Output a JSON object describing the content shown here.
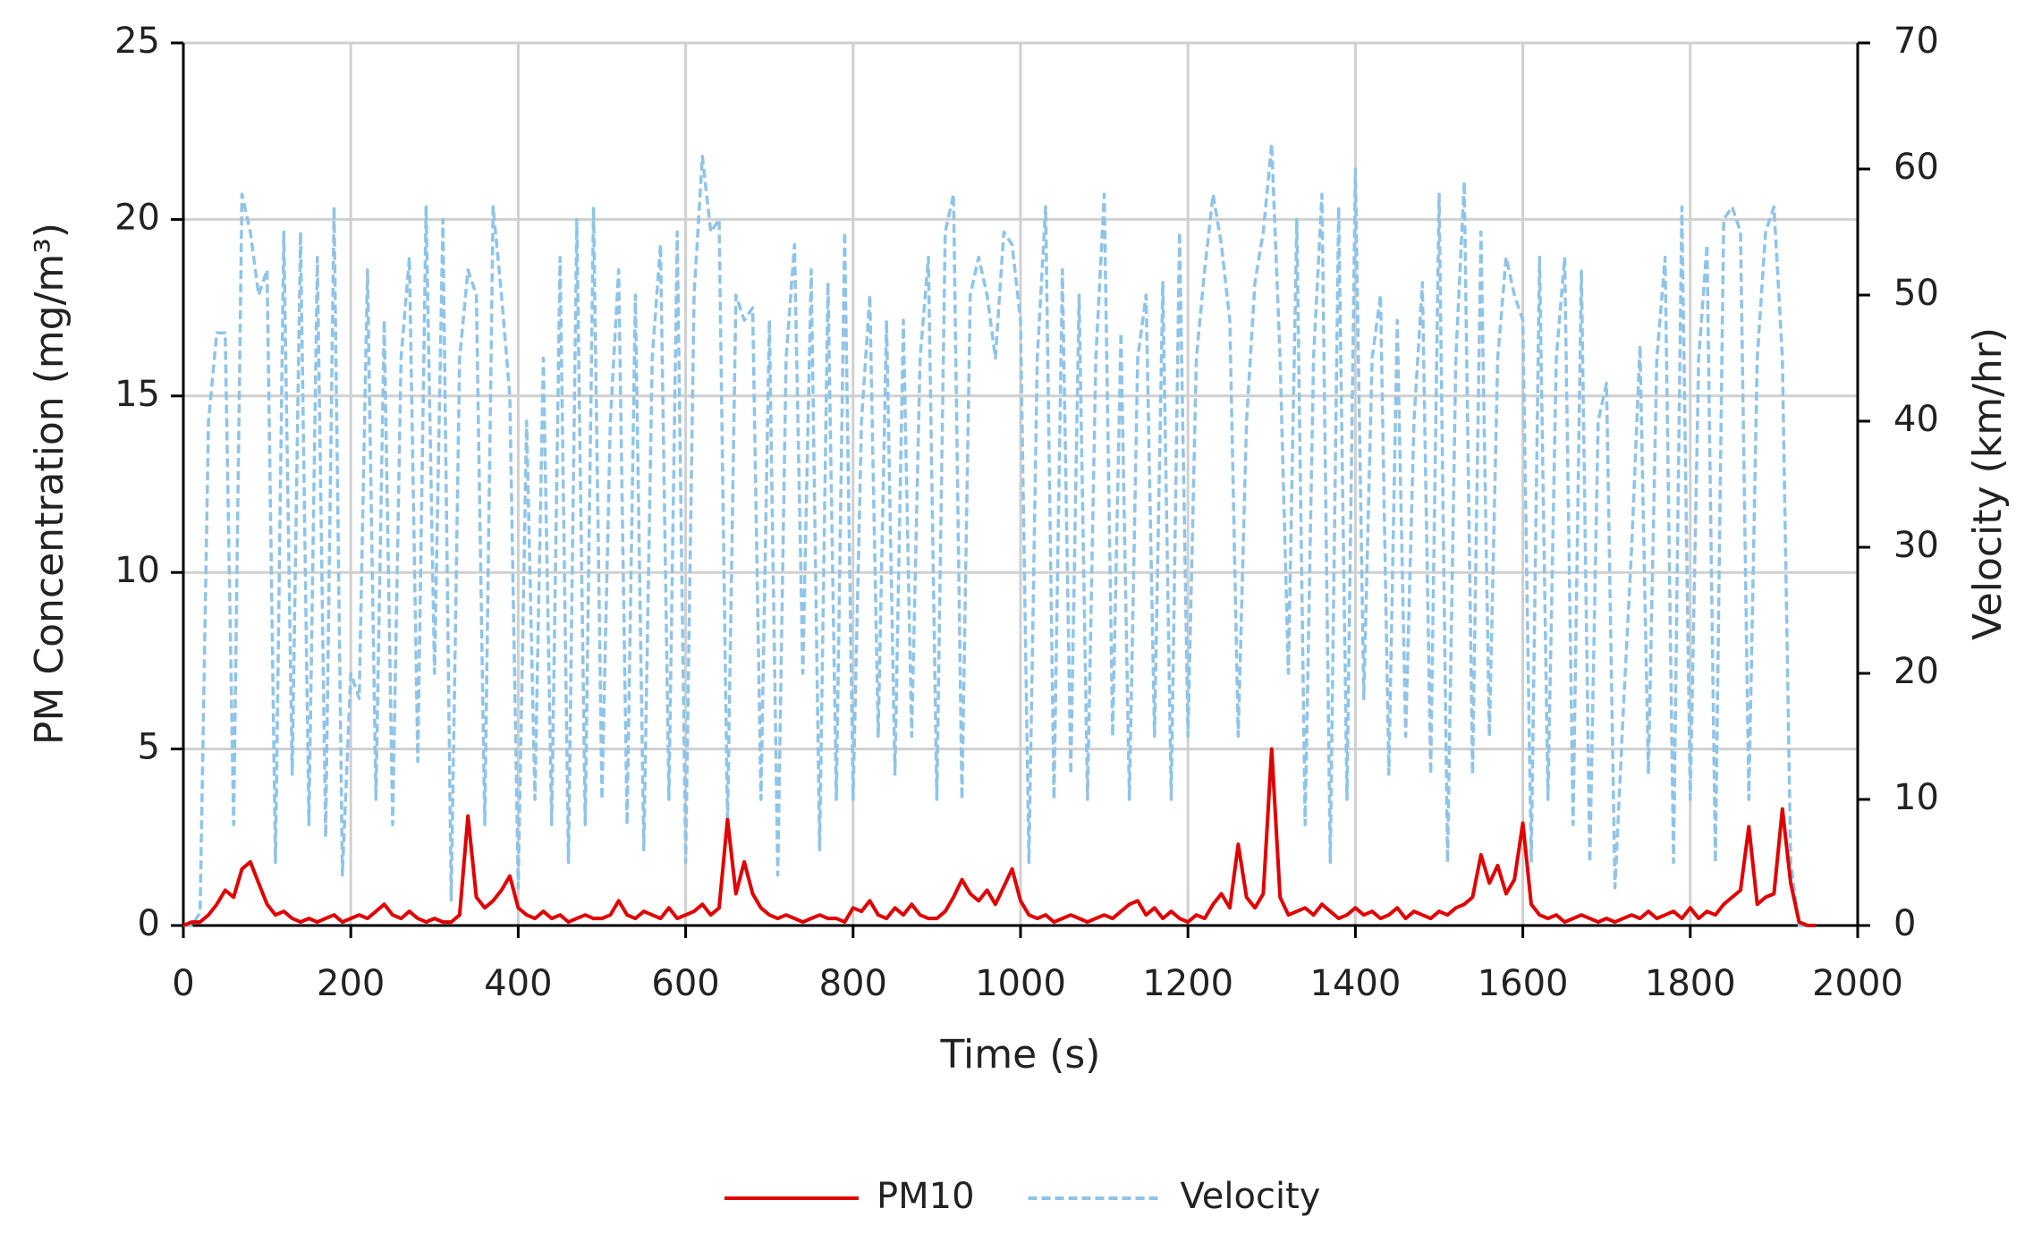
{
  "chart_data": {
    "type": "line",
    "x_label": "Time (s)",
    "y_label": "PM Concentration (mg/m³)",
    "y2_label": "Velocity (km/hr)",
    "x": [
      0,
      10,
      20,
      30,
      40,
      50,
      60,
      70,
      80,
      90,
      100,
      110,
      120,
      130,
      140,
      150,
      160,
      170,
      180,
      190,
      200,
      210,
      220,
      230,
      240,
      250,
      260,
      270,
      280,
      290,
      300,
      310,
      320,
      330,
      340,
      350,
      360,
      370,
      380,
      390,
      400,
      410,
      420,
      430,
      440,
      450,
      460,
      470,
      480,
      490,
      500,
      510,
      520,
      530,
      540,
      550,
      560,
      570,
      580,
      590,
      600,
      610,
      620,
      630,
      640,
      650,
      660,
      670,
      680,
      690,
      700,
      710,
      720,
      730,
      740,
      750,
      760,
      770,
      780,
      790,
      800,
      810,
      820,
      830,
      840,
      850,
      860,
      870,
      880,
      890,
      900,
      910,
      920,
      930,
      940,
      950,
      960,
      970,
      980,
      990,
      1000,
      1010,
      1020,
      1030,
      1040,
      1050,
      1060,
      1070,
      1080,
      1090,
      1100,
      1110,
      1120,
      1130,
      1140,
      1150,
      1160,
      1170,
      1180,
      1190,
      1200,
      1210,
      1220,
      1230,
      1240,
      1250,
      1260,
      1270,
      1280,
      1290,
      1300,
      1310,
      1320,
      1330,
      1340,
      1350,
      1360,
      1370,
      1380,
      1390,
      1400,
      1410,
      1420,
      1430,
      1440,
      1450,
      1460,
      1470,
      1480,
      1490,
      1500,
      1510,
      1520,
      1530,
      1540,
      1550,
      1560,
      1570,
      1580,
      1590,
      1600,
      1610,
      1620,
      1630,
      1640,
      1650,
      1660,
      1670,
      1680,
      1690,
      1700,
      1710,
      1720,
      1730,
      1740,
      1750,
      1760,
      1770,
      1780,
      1790,
      1800,
      1810,
      1820,
      1830,
      1840,
      1850,
      1860,
      1870,
      1880,
      1890,
      1900,
      1910,
      1920,
      1930,
      1940,
      1950
    ],
    "series": [
      {
        "name": "PM10",
        "color": "#e00000",
        "dash": false,
        "values": [
          0,
          0.1,
          0.1,
          0.3,
          0.6,
          1.0,
          0.8,
          1.6,
          1.8,
          1.2,
          0.6,
          0.3,
          0.4,
          0.2,
          0.1,
          0.2,
          0.1,
          0.2,
          0.3,
          0.1,
          0.2,
          0.3,
          0.2,
          0.4,
          0.6,
          0.3,
          0.2,
          0.4,
          0.2,
          0.1,
          0.2,
          0.1,
          0.1,
          0.3,
          3.1,
          0.8,
          0.5,
          0.7,
          1.0,
          1.4,
          0.5,
          0.3,
          0.2,
          0.4,
          0.2,
          0.3,
          0.1,
          0.2,
          0.3,
          0.2,
          0.2,
          0.3,
          0.7,
          0.3,
          0.2,
          0.4,
          0.3,
          0.2,
          0.5,
          0.2,
          0.3,
          0.4,
          0.6,
          0.3,
          0.5,
          3.0,
          0.9,
          1.8,
          0.9,
          0.5,
          0.3,
          0.2,
          0.3,
          0.2,
          0.1,
          0.2,
          0.3,
          0.2,
          0.2,
          0.1,
          0.5,
          0.4,
          0.7,
          0.3,
          0.2,
          0.5,
          0.3,
          0.6,
          0.3,
          0.2,
          0.2,
          0.4,
          0.8,
          1.3,
          0.9,
          0.7,
          1.0,
          0.6,
          1.1,
          1.6,
          0.7,
          0.3,
          0.2,
          0.3,
          0.1,
          0.2,
          0.3,
          0.2,
          0.1,
          0.2,
          0.3,
          0.2,
          0.4,
          0.6,
          0.7,
          0.3,
          0.5,
          0.2,
          0.4,
          0.2,
          0.1,
          0.3,
          0.2,
          0.6,
          0.9,
          0.5,
          2.3,
          0.8,
          0.5,
          0.9,
          5.0,
          0.8,
          0.3,
          0.4,
          0.5,
          0.3,
          0.6,
          0.4,
          0.2,
          0.3,
          0.5,
          0.3,
          0.4,
          0.2,
          0.3,
          0.5,
          0.2,
          0.4,
          0.3,
          0.2,
          0.4,
          0.3,
          0.5,
          0.6,
          0.8,
          2.0,
          1.2,
          1.7,
          0.9,
          1.3,
          2.9,
          0.6,
          0.3,
          0.2,
          0.3,
          0.1,
          0.2,
          0.3,
          0.2,
          0.1,
          0.2,
          0.1,
          0.2,
          0.3,
          0.2,
          0.4,
          0.2,
          0.3,
          0.4,
          0.2,
          0.5,
          0.2,
          0.4,
          0.3,
          0.6,
          0.8,
          1.0,
          2.8,
          0.6,
          0.8,
          0.9,
          3.3,
          1.2,
          0.1,
          0,
          0
        ],
        "axis": "y"
      },
      {
        "name": "Velocity",
        "color": "#8fc4e8",
        "dash": true,
        "axis": "y2",
        "values": [
          0,
          0,
          1,
          40,
          47,
          47,
          8,
          58,
          55,
          50,
          52,
          5,
          55,
          12,
          55,
          8,
          53,
          7,
          57,
          4,
          20,
          18,
          52,
          10,
          48,
          8,
          45,
          53,
          13,
          57,
          20,
          56,
          2,
          45,
          52,
          50,
          8,
          57,
          50,
          42,
          3,
          40,
          10,
          45,
          8,
          53,
          5,
          56,
          8,
          57,
          10,
          40,
          52,
          8,
          50,
          6,
          45,
          54,
          10,
          55,
          5,
          50,
          61,
          55,
          56,
          8,
          50,
          48,
          49,
          10,
          48,
          4,
          45,
          54,
          20,
          52,
          6,
          51,
          10,
          55,
          10,
          40,
          50,
          15,
          48,
          12,
          48,
          15,
          45,
          53,
          10,
          55,
          58,
          10,
          50,
          53,
          50,
          45,
          55,
          54,
          48,
          5,
          45,
          57,
          10,
          52,
          12,
          50,
          10,
          45,
          58,
          15,
          47,
          10,
          45,
          50,
          15,
          51,
          10,
          55,
          15,
          45,
          52,
          58,
          54,
          48,
          15,
          40,
          51,
          55,
          62,
          45,
          20,
          56,
          8,
          45,
          58,
          5,
          57,
          10,
          60,
          18,
          45,
          50,
          12,
          48,
          15,
          40,
          51,
          12,
          58,
          5,
          45,
          59,
          12,
          55,
          15,
          45,
          53,
          50,
          48,
          5,
          53,
          10,
          45,
          53,
          8,
          52,
          5,
          40,
          43,
          3,
          17,
          30,
          46,
          12,
          45,
          53,
          5,
          57,
          10,
          45,
          54,
          5,
          56,
          57,
          55,
          10,
          45,
          55,
          57,
          45,
          5,
          0,
          0,
          0
        ]
      }
    ],
    "xlim": [
      0,
      2000
    ],
    "xticks": [
      0,
      200,
      400,
      600,
      800,
      1000,
      1200,
      1400,
      1600,
      1800,
      2000
    ],
    "ylim": [
      0,
      25
    ],
    "yticks": [
      0,
      5,
      10,
      15,
      20,
      25
    ],
    "y2lim": [
      0,
      70
    ],
    "y2ticks": [
      0,
      10,
      20,
      30,
      40,
      50,
      60,
      70
    ],
    "grid": true,
    "legend": "bottom"
  }
}
